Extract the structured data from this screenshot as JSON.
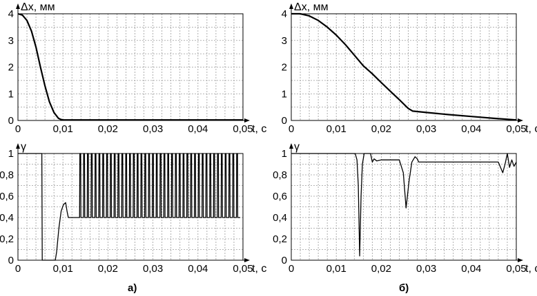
{
  "chart_data": [
    {
      "id": "a-top",
      "type": "line",
      "ylabel": "Δx, мм",
      "xlabel": "t, c",
      "xlim": [
        0,
        0.05
      ],
      "ylim": [
        0,
        4
      ],
      "xticks": [
        "0",
        "0,01",
        "0,02",
        "0,03",
        "0,04",
        "0,05"
      ],
      "yticks": [
        "0",
        "1",
        "2",
        "3",
        "4"
      ],
      "grid": true,
      "series": [
        {
          "x": [
            0,
            0.001,
            0.002,
            0.003,
            0.004,
            0.005,
            0.006,
            0.007,
            0.008,
            0.009,
            0.0095,
            0.01,
            0.011,
            0.012,
            0.02,
            0.03,
            0.04,
            0.05
          ],
          "y": [
            4.0,
            3.95,
            3.75,
            3.35,
            2.75,
            2.0,
            1.3,
            0.7,
            0.3,
            0.08,
            0.04,
            0.02,
            0.02,
            0.02,
            0.02,
            0.02,
            0.02,
            0.02
          ]
        }
      ]
    },
    {
      "id": "a-bottom",
      "type": "line",
      "ylabel": "γ",
      "xlabel": "t, c",
      "xlim": [
        0,
        0.05
      ],
      "ylim": [
        0,
        1
      ],
      "xticks": [
        "0",
        "0,01",
        "0,02",
        "0,03",
        "0,04",
        "0,05"
      ],
      "yticks": [
        "0",
        "0,2",
        "0,4",
        "0,6",
        "0,8",
        "1"
      ],
      "grid": true,
      "series": [
        {
          "x": [
            0,
            0.0053,
            0.0054,
            0.0083,
            0.0086,
            0.0091,
            0.0096,
            0.0101,
            0.0106,
            0.0109,
            0.0112,
            0.0116,
            0.0135
          ],
          "y": [
            1.0,
            1.0,
            0.0,
            0.0,
            0.08,
            0.3,
            0.46,
            0.52,
            0.54,
            0.46,
            0.4,
            0.4,
            0.4
          ],
          "oscillation": {
            "from": 0.0137,
            "to": 0.05,
            "low": 0.4,
            "high": 1.0,
            "period": 0.00085
          }
        }
      ]
    },
    {
      "id": "b-top",
      "type": "line",
      "ylabel": "Δx, мм",
      "xlabel": "t, c",
      "xlim": [
        0,
        0.05
      ],
      "ylim": [
        0,
        4
      ],
      "xticks": [
        "0",
        "0,01",
        "0,02",
        "0,03",
        "0,04",
        "0,05"
      ],
      "yticks": [
        "0",
        "1",
        "2",
        "3",
        "4"
      ],
      "grid": true,
      "series": [
        {
          "x": [
            0,
            0.002,
            0.004,
            0.006,
            0.008,
            0.01,
            0.012,
            0.014,
            0.016,
            0.018,
            0.02,
            0.022,
            0.024,
            0.026,
            0.027,
            0.03,
            0.035,
            0.04,
            0.045,
            0.05
          ],
          "y": [
            4.0,
            4.0,
            3.92,
            3.75,
            3.5,
            3.2,
            2.85,
            2.45,
            2.05,
            1.75,
            1.42,
            1.1,
            0.78,
            0.45,
            0.35,
            0.3,
            0.22,
            0.15,
            0.08,
            0.02
          ]
        }
      ]
    },
    {
      "id": "b-bottom",
      "type": "line",
      "ylabel": "γ",
      "xlabel": "t, c",
      "xlim": [
        0,
        0.05
      ],
      "ylim": [
        0,
        1
      ],
      "xticks": [
        "0",
        "0,01",
        "0,02",
        "0,03",
        "0,04",
        "0,05"
      ],
      "yticks": [
        "0",
        "0,2",
        "0,4",
        "0,6",
        "0,8",
        "1"
      ],
      "grid": true,
      "series": [
        {
          "x": [
            0,
            0.0142,
            0.0146,
            0.0149,
            0.0152,
            0.0155,
            0.0158,
            0.0162,
            0.0166,
            0.0176,
            0.018,
            0.0184,
            0.019,
            0.02,
            0.024,
            0.0249,
            0.0255,
            0.0262,
            0.0268,
            0.0275,
            0.028,
            0.0283,
            0.0287,
            0.0291,
            0.0298,
            0.046,
            0.0465,
            0.047,
            0.0475,
            0.048,
            0.0485,
            0.049,
            0.0495,
            0.05
          ],
          "y": [
            1.0,
            1.0,
            0.94,
            0.7,
            0.04,
            0.6,
            0.9,
            1.0,
            1.0,
            1.0,
            0.92,
            0.95,
            0.93,
            0.94,
            0.94,
            0.82,
            0.49,
            0.75,
            0.92,
            0.97,
            0.95,
            0.92,
            0.92,
            0.92,
            0.92,
            0.92,
            0.87,
            0.82,
            0.9,
            1.0,
            0.87,
            0.94,
            0.88,
            0.92
          ]
        }
      ]
    }
  ],
  "captions": {
    "a": "а)",
    "b": "б)"
  }
}
